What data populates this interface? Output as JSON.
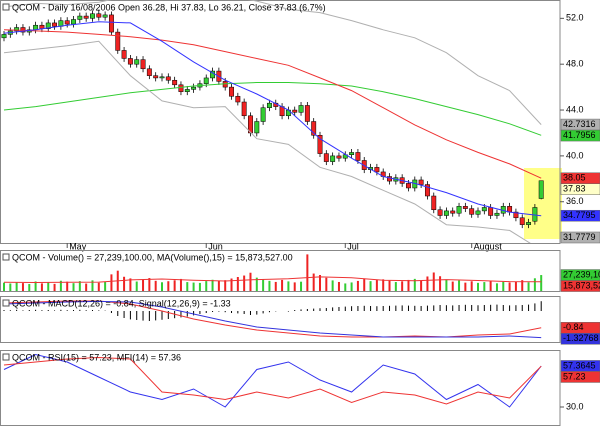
{
  "chart_data": [
    {
      "type": "candlestick",
      "title": "QCOM - Daily 16/08/2006 Open 36.28, Hi 37.83, Lo 36.21, Close 37.83 (6.7%)",
      "categories": [
        null,
        null,
        null,
        null,
        null,
        null,
        null,
        null,
        null,
        null,
        "May",
        null,
        null,
        null,
        null,
        null,
        null,
        null,
        null,
        null,
        null,
        null,
        null,
        null,
        null,
        null,
        null,
        null,
        null,
        null,
        null,
        null,
        "Jun",
        null,
        null,
        null,
        null,
        null,
        null,
        null,
        null,
        null,
        null,
        null,
        null,
        null,
        null,
        null,
        null,
        null,
        null,
        null,
        null,
        null,
        "Jul",
        null,
        null,
        null,
        null,
        null,
        null,
        null,
        null,
        null,
        null,
        null,
        null,
        null,
        null,
        null,
        null,
        null,
        null,
        null,
        "August",
        null,
        null,
        null,
        null,
        null,
        null,
        null,
        null,
        null,
        null,
        null
      ],
      "open": [
        50.3,
        50.6,
        50.9,
        51.2,
        50.8,
        51.0,
        51.4,
        51.1,
        51.6,
        51.3,
        51.8,
        51.5,
        51.9,
        52.2,
        52.0,
        52.4,
        52.1,
        52.3,
        50.8,
        49.2,
        48.5,
        48.0,
        48.4,
        47.6,
        47.0,
        46.8,
        46.9,
        46.6,
        46.2,
        45.6,
        45.8,
        46.0,
        46.3,
        46.8,
        47.4,
        46.5,
        46.0,
        45.2,
        44.7,
        43.5,
        42.0,
        43.0,
        44.2,
        44.6,
        44.3,
        43.5,
        44.0,
        43.8,
        44.4,
        43.0,
        41.8,
        40.2,
        39.5,
        40.0,
        39.8,
        40.1,
        40.3,
        39.6,
        38.8,
        39.0,
        38.6,
        38.2,
        37.8,
        38.1,
        37.6,
        37.2,
        37.9,
        37.5,
        36.5,
        35.3,
        34.8,
        35.2,
        35.0,
        35.6,
        35.4,
        34.9,
        35.2,
        35.5,
        34.8,
        35.0,
        35.6,
        35.1,
        34.6,
        34.0,
        34.3,
        36.28
      ],
      "high": [
        50.9,
        51.2,
        51.5,
        51.5,
        51.3,
        51.7,
        51.7,
        51.9,
        51.9,
        52.1,
        52.1,
        52.2,
        52.5,
        52.5,
        52.7,
        52.7,
        52.6,
        52.6,
        51.1,
        49.5,
        48.8,
        48.7,
        48.7,
        47.9,
        47.3,
        47.2,
        47.2,
        46.9,
        46.5,
        46.1,
        46.3,
        46.6,
        47.1,
        47.7,
        47.7,
        46.8,
        46.3,
        45.5,
        45.0,
        43.8,
        43.3,
        44.5,
        44.9,
        44.9,
        44.6,
        44.3,
        44.3,
        44.7,
        44.7,
        43.3,
        42.1,
        40.5,
        40.3,
        40.3,
        40.4,
        40.6,
        40.6,
        39.9,
        39.3,
        39.3,
        38.9,
        38.5,
        38.4,
        38.4,
        37.9,
        38.2,
        38.2,
        37.8,
        36.8,
        35.6,
        35.5,
        35.5,
        35.9,
        35.9,
        35.7,
        35.5,
        35.8,
        35.8,
        35.3,
        35.9,
        35.9,
        35.4,
        34.9,
        34.5,
        35.8,
        37.83
      ],
      "low": [
        50.0,
        50.3,
        50.6,
        50.5,
        50.5,
        50.7,
        50.8,
        50.8,
        51.0,
        51.0,
        51.2,
        51.2,
        51.6,
        51.7,
        51.7,
        51.8,
        51.8,
        50.5,
        48.9,
        48.2,
        47.7,
        47.7,
        47.3,
        46.7,
        46.5,
        46.5,
        46.3,
        45.9,
        45.3,
        45.3,
        45.5,
        45.7,
        46.0,
        46.5,
        46.2,
        45.7,
        44.9,
        44.4,
        43.2,
        41.7,
        41.7,
        42.7,
        43.9,
        44.0,
        43.2,
        43.2,
        43.5,
        43.5,
        42.7,
        41.5,
        39.9,
        39.2,
        39.2,
        39.5,
        39.5,
        39.8,
        39.3,
        38.5,
        38.5,
        38.3,
        37.9,
        37.5,
        37.5,
        37.3,
        36.9,
        36.9,
        37.2,
        36.2,
        35.0,
        34.5,
        34.5,
        34.7,
        34.7,
        35.1,
        34.6,
        34.6,
        34.9,
        34.5,
        34.5,
        34.7,
        34.8,
        34.3,
        33.7,
        33.7,
        34.0,
        36.21
      ],
      "close": [
        50.6,
        50.9,
        51.2,
        50.8,
        51.0,
        51.4,
        51.1,
        51.6,
        51.3,
        51.8,
        51.5,
        51.9,
        52.2,
        52.0,
        52.4,
        52.1,
        52.3,
        50.8,
        49.2,
        48.5,
        48.0,
        48.4,
        47.6,
        47.0,
        46.8,
        46.9,
        46.6,
        46.2,
        45.6,
        45.8,
        46.0,
        46.3,
        46.8,
        47.4,
        46.5,
        46.0,
        45.2,
        44.7,
        43.5,
        42.0,
        43.0,
        44.2,
        44.6,
        44.3,
        43.5,
        44.0,
        43.8,
        44.4,
        43.0,
        41.8,
        40.2,
        39.5,
        40.0,
        39.8,
        40.1,
        40.3,
        39.6,
        38.8,
        39.0,
        38.6,
        38.2,
        37.8,
        38.1,
        37.6,
        37.2,
        37.9,
        37.5,
        36.5,
        35.3,
        34.8,
        35.2,
        35.0,
        35.6,
        35.4,
        34.9,
        35.2,
        35.5,
        34.8,
        35.0,
        35.6,
        35.1,
        34.6,
        34.0,
        34.2,
        35.5,
        37.83
      ],
      "up_color": "#33cc33",
      "down_color": "#ee2222",
      "ylim": [
        32.4,
        53.6
      ],
      "yticks": [
        {
          "value": 52,
          "label": "52.0"
        },
        {
          "value": 48,
          "label": "48.0"
        },
        {
          "value": 44,
          "label": "44.0"
        },
        {
          "value": 40,
          "label": "40.0"
        },
        {
          "value": 36,
          "label": "36.0"
        }
      ],
      "series": [
        {
          "color": "#b0b0b0",
          "x": [
            0,
            5,
            10,
            15,
            20,
            25,
            30,
            35,
            40,
            45,
            50,
            55,
            60,
            65,
            70,
            75,
            80,
            85
          ],
          "values": [
            53.0,
            53.3,
            53.2,
            53.4,
            54.0,
            54.8,
            55.0,
            54.0,
            53.5,
            52.8,
            52.5,
            51.8,
            51.0,
            50.3,
            49.0,
            47.0,
            45.7,
            42.7316
          ]
        },
        {
          "color": "#33cc33",
          "x": [
            0,
            5,
            10,
            15,
            20,
            25,
            30,
            35,
            40,
            45,
            50,
            55,
            60,
            65,
            70,
            75,
            80,
            85
          ],
          "values": [
            44.0,
            44.3,
            44.7,
            45.1,
            45.5,
            45.8,
            46.1,
            46.3,
            46.4,
            46.4,
            46.3,
            46.1,
            45.6,
            45.0,
            44.3,
            43.6,
            42.8,
            41.7956
          ]
        },
        {
          "color": "#ee3333",
          "x": [
            0,
            5,
            10,
            15,
            20,
            25,
            30,
            35,
            40,
            45,
            50,
            55,
            60,
            65,
            70,
            75,
            80,
            85
          ],
          "values": [
            51.0,
            50.9,
            50.8,
            50.6,
            50.4,
            50.1,
            49.7,
            49.1,
            48.5,
            47.9,
            46.8,
            45.7,
            44.2,
            42.7,
            41.4,
            40.3,
            39.3,
            38.05
          ]
        },
        {
          "color": "#3333ff",
          "x": [
            0,
            5,
            10,
            15,
            20,
            25,
            30,
            35,
            40,
            45,
            50,
            55,
            60,
            65,
            70,
            75,
            80,
            85
          ],
          "values": [
            50.7,
            51.0,
            51.4,
            51.7,
            51.6,
            50.0,
            48.2,
            46.6,
            45.4,
            44.0,
            41.5,
            39.8,
            38.2,
            37.6,
            36.8,
            35.8,
            35.1,
            34.7795
          ]
        },
        {
          "color": "#b0b0b0",
          "x": [
            0,
            5,
            10,
            15,
            20,
            25,
            30,
            35,
            40,
            45,
            50,
            55,
            60,
            65,
            70,
            75,
            80,
            85
          ],
          "values": [
            49.0,
            49.3,
            49.6,
            50.0,
            47.0,
            44.8,
            44.2,
            44.3,
            41.5,
            41.0,
            39.0,
            38.2,
            37.0,
            35.8,
            34.0,
            33.8,
            33.5,
            31.7779
          ]
        }
      ]
    },
    {
      "type": "bar",
      "title": "QCOM - Volume() = 27,239,100.00, MA(Volume(),15) = 15,873,527.00",
      "values": [
        14200000,
        12800000,
        15100000,
        13500000,
        11900000,
        16300000,
        13000000,
        14800000,
        12200000,
        17500000,
        15900000,
        13400000,
        16800000,
        12700000,
        18200000,
        14100000,
        15600000,
        28400000,
        34700000,
        24300000,
        21500000,
        16200000,
        19800000,
        22100000,
        17400000,
        14900000,
        16700000,
        18300000,
        20600000,
        15200000,
        14400000,
        13800000,
        16900000,
        19200000,
        17700000,
        18500000,
        21300000,
        23900000,
        26400000,
        31200000,
        22800000,
        20100000,
        17300000,
        15500000,
        18900000,
        16400000,
        14700000,
        15900000,
        62500000,
        29800000,
        27300000,
        22600000,
        18100000,
        15400000,
        12900000,
        14600000,
        17200000,
        21400000,
        16800000,
        18700000,
        19900000,
        17600000,
        15300000,
        16500000,
        18900000,
        20700000,
        17100000,
        24800000,
        31600000,
        25200000,
        19400000,
        16100000,
        17800000,
        14300000,
        16600000,
        13900000,
        15200000,
        17400000,
        13100000,
        15800000,
        14600000,
        16200000,
        18500000,
        14900000,
        21700000,
        27239100
      ],
      "value_labels": [
        null,
        null,
        null,
        null,
        null,
        null,
        null,
        null,
        null,
        null,
        null,
        null,
        null,
        null,
        null,
        null,
        null,
        null,
        null,
        null,
        null,
        null,
        null,
        null,
        null,
        null,
        null,
        null,
        null,
        null,
        null,
        null,
        null,
        null,
        null,
        null,
        null,
        null,
        null,
        null,
        null,
        null,
        null,
        null,
        null,
        null,
        null,
        null,
        null,
        null,
        null,
        null,
        null,
        null,
        null,
        null,
        null,
        null,
        null,
        null,
        null,
        null,
        null,
        null,
        null,
        null,
        null,
        null,
        null,
        null,
        null,
        null,
        null,
        null,
        null,
        null,
        null,
        null,
        null,
        null,
        null,
        null,
        null,
        null,
        null,
        "27,239,100"
      ],
      "up_color": "#33cc33",
      "down_color": "#ee2222",
      "ylim": [
        0,
        70000000
      ],
      "series": [
        {
          "color": "#ee3333",
          "x": [
            0,
            5,
            10,
            15,
            20,
            25,
            30,
            35,
            40,
            45,
            50,
            55,
            60,
            65,
            70,
            75,
            80,
            85
          ],
          "values": [
            15000000,
            14500000,
            14800000,
            15200000,
            19000000,
            20500000,
            18500000,
            17000000,
            19500000,
            21000000,
            24000000,
            22500000,
            18500000,
            17500000,
            19500000,
            18000000,
            16000000,
            15873527
          ],
          "value_labels": [
            null,
            null,
            null,
            null,
            null,
            null,
            null,
            null,
            null,
            null,
            null,
            null,
            null,
            null,
            null,
            null,
            null,
            "15,873,527"
          ]
        }
      ]
    },
    {
      "type": "line",
      "title": "QCOM - MACD(12,26) = -0.84, Signal(12,26,9) = -1.33",
      "histogram": [
        0.05,
        0.04,
        0.06,
        0.03,
        0.05,
        0.06,
        0.04,
        0.05,
        0.03,
        0.06,
        0.04,
        0.05,
        0.06,
        0.04,
        0.05,
        0.03,
        0.02,
        -0.1,
        -0.25,
        -0.35,
        -0.42,
        -0.45,
        -0.48,
        -0.5,
        -0.47,
        -0.44,
        -0.4,
        -0.36,
        -0.32,
        -0.28,
        -0.22,
        -0.15,
        -0.1,
        -0.05,
        -0.03,
        -0.06,
        -0.1,
        -0.12,
        -0.15,
        -0.2,
        -0.18,
        -0.12,
        -0.06,
        -0.02,
        0.0,
        -0.03,
        0.05,
        0.08,
        0.1,
        0.12,
        0.14,
        0.15,
        0.18,
        0.2,
        0.22,
        0.24,
        0.25,
        0.26,
        0.25,
        0.24,
        0.25,
        0.26,
        0.27,
        0.28,
        0.27,
        0.26,
        0.25,
        0.27,
        0.28,
        0.3,
        0.29,
        0.28,
        0.3,
        0.31,
        0.3,
        0.29,
        0.3,
        0.31,
        0.32,
        0.3,
        0.28,
        0.29,
        0.3,
        0.32,
        0.38,
        0.49
      ],
      "histogram_color": "#000000",
      "ylim": [
        -1.55,
        0.75
      ],
      "series": [
        {
          "color": "#ee3333",
          "x": [
            0,
            5,
            10,
            15,
            20,
            25,
            30,
            35,
            40,
            45,
            50,
            55,
            60,
            65,
            70,
            75,
            80,
            85
          ],
          "values": [
            0.4,
            0.45,
            0.5,
            0.5,
            0.35,
            0.0,
            -0.4,
            -0.7,
            -0.95,
            -1.1,
            -1.25,
            -1.3,
            -1.3,
            -1.25,
            -1.3,
            -1.2,
            -1.15,
            -0.84
          ]
        },
        {
          "color": "#3333dd",
          "x": [
            0,
            5,
            10,
            15,
            20,
            25,
            30,
            35,
            40,
            45,
            50,
            55,
            60,
            65,
            70,
            75,
            80,
            85
          ],
          "values": [
            0.35,
            0.4,
            0.45,
            0.48,
            0.45,
            0.2,
            -0.15,
            -0.5,
            -0.8,
            -0.95,
            -1.1,
            -1.2,
            -1.3,
            -1.3,
            -1.3,
            -1.3,
            -1.25,
            -1.32768
          ]
        }
      ]
    },
    {
      "type": "line",
      "title": "QCOM - RSI(15) = 57.23, MFI(14) = 57.36",
      "ylim": [
        18,
        68
      ],
      "yticks": [
        {
          "value": 30,
          "label": "30.0"
        }
      ],
      "series": [
        {
          "color": "#3333ee",
          "x": [
            0,
            5,
            10,
            15,
            20,
            25,
            30,
            35,
            40,
            45,
            50,
            55,
            60,
            65,
            70,
            75,
            80,
            85
          ],
          "values": [
            55,
            65,
            60,
            50,
            40,
            35,
            42,
            30,
            55,
            60,
            48,
            40,
            58,
            52,
            35,
            45,
            30,
            57.3645
          ]
        },
        {
          "color": "#ee3333",
          "x": [
            0,
            5,
            10,
            15,
            20,
            25,
            30,
            35,
            40,
            45,
            50,
            55,
            60,
            65,
            70,
            75,
            80,
            85
          ],
          "values": [
            58,
            60,
            62,
            63,
            62,
            40,
            38,
            35,
            40,
            36,
            42,
            33,
            40,
            38,
            32,
            40,
            36,
            57.23
          ]
        }
      ]
    }
  ]
}
